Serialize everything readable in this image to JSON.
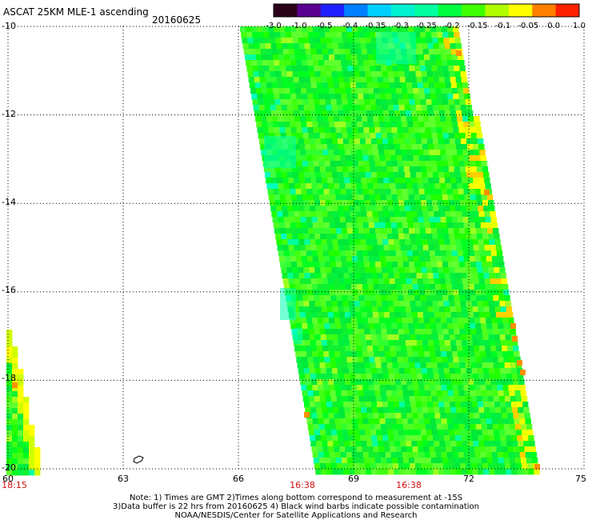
{
  "header": {
    "title": "ASCAT 25KM MLE-1 ascending",
    "date": "20160625"
  },
  "colorbar": {
    "labels": [
      "-3.0",
      "-1.0",
      "-0.5",
      "-0.4",
      "-0.35",
      "-0.3",
      "-0.25",
      "-0.2",
      "-0.15",
      "-0.1",
      "-0.05",
      "0.0",
      "1.0"
    ],
    "colors": [
      "#2a0018",
      "#5a0090",
      "#2020ff",
      "#0080ff",
      "#00d0ff",
      "#00f0d0",
      "#00ffa0",
      "#00ff40",
      "#40ff00",
      "#b0ff00",
      "#ffff00",
      "#ff8000",
      "#ff2000"
    ]
  },
  "axes": {
    "lat_labels": [
      "-10",
      "-12",
      "-14",
      "-16",
      "-18",
      "-20"
    ],
    "lon_labels": [
      "60",
      "63",
      "66",
      "69",
      "72",
      "75"
    ],
    "lat_range": [
      -20,
      -10
    ],
    "lon_range": [
      60,
      75
    ]
  },
  "swath_times": [
    "18:15",
    "16:38",
    "16:38"
  ],
  "notes": {
    "line1": "Note: 1) Times are GMT 2)Times along bottom correspond to measurement at -15S",
    "line2": "3)Data buffer is 22 hrs from 20160625 4) Black wind barbs indicate possible contamination",
    "line3": "NOAA/NESDIS/Center for Satellite Applications and Research"
  }
}
